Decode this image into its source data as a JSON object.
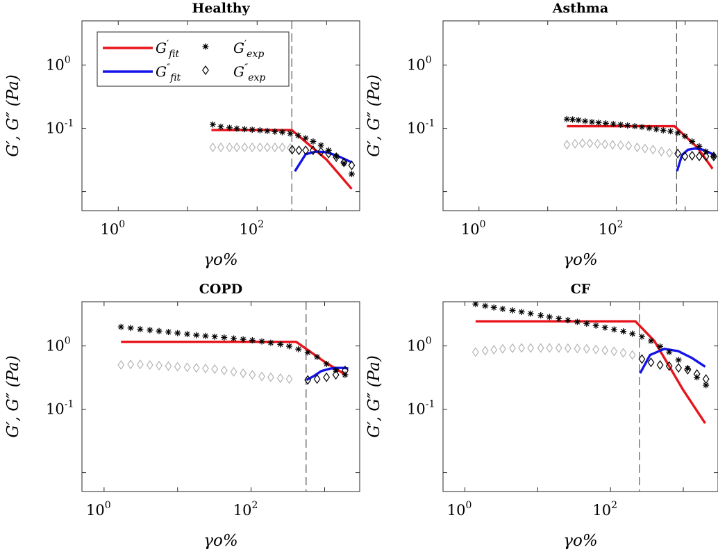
{
  "chart_data": [
    {
      "type": "line",
      "title": "Healthy",
      "xlabel": "γo%",
      "ylabel": "G′, G″ (Pa)",
      "xscale": "log",
      "yscale": "log",
      "xlim": [
        0.3,
        3000
      ],
      "ylim": [
        0.005,
        5
      ],
      "xticks": [
        {
          "base": "10",
          "exp": "0",
          "value": 1
        },
        {
          "base": "10",
          "exp": "2",
          "value": 100
        }
      ],
      "yticks": [
        {
          "base": "10",
          "exp": "0",
          "value": 1
        },
        {
          "base": "10",
          "exp": "-1",
          "value": 0.1
        }
      ],
      "vline": 316,
      "legend": {
        "placement": "top-left",
        "entries": [
          {
            "base": "G",
            "mark": "′",
            "sub": "fit"
          },
          {
            "base": "G",
            "mark": "″",
            "sub": "fit"
          },
          {
            "base": "G",
            "mark": "′",
            "sub": "exp"
          },
          {
            "base": "G",
            "mark": "″",
            "sub": "exp"
          }
        ]
      },
      "series": [
        {
          "kind": "line",
          "color": "#e8141b",
          "x": [
            22,
            315,
            1000,
            2300
          ],
          "y": [
            0.094,
            0.094,
            0.032,
            0.011
          ]
        },
        {
          "kind": "line",
          "color": "#1414e8",
          "x": [
            350,
            500,
            700,
            1000,
            1500,
            2300
          ],
          "y": [
            0.021,
            0.039,
            0.043,
            0.042,
            0.036,
            0.029
          ]
        },
        {
          "kind": "marker",
          "symbol": "asterisk",
          "x": [
            23,
            30,
            40,
            51,
            66,
            85,
            110,
            140,
            180,
            230,
            300,
            390,
            500,
            640,
            830,
            1070,
            1380,
            1780,
            2300
          ],
          "y": [
            0.115,
            0.106,
            0.102,
            0.099,
            0.097,
            0.095,
            0.093,
            0.091,
            0.089,
            0.087,
            0.083,
            0.077,
            0.07,
            0.062,
            0.054,
            0.045,
            0.036,
            0.028,
            0.019
          ]
        },
        {
          "kind": "marker",
          "symbol": "diamond",
          "color": "#b4b4b4",
          "x": [
            23,
            30,
            40,
            51,
            66,
            85,
            110,
            140,
            180,
            230,
            300
          ],
          "y": [
            0.05,
            0.05,
            0.05,
            0.05,
            0.05,
            0.05,
            0.05,
            0.05,
            0.05,
            0.05,
            0.049
          ]
        },
        {
          "kind": "marker",
          "symbol": "diamond",
          "color": "#000000",
          "x": [
            320,
            400,
            500,
            640,
            830,
            1070,
            1380,
            1780,
            2300
          ],
          "y": [
            0.046,
            0.045,
            0.045,
            0.045,
            0.043,
            0.04,
            0.035,
            0.029,
            0.026
          ]
        }
      ]
    },
    {
      "type": "line",
      "title": "Asthma",
      "xlabel": "γo%",
      "ylabel": "G′, G″ (Pa)",
      "xscale": "log",
      "yscale": "log",
      "xlim": [
        0.3,
        3000
      ],
      "ylim": [
        0.005,
        5
      ],
      "xticks": [
        {
          "base": "10",
          "exp": "0",
          "value": 1
        },
        {
          "base": "10",
          "exp": "2",
          "value": 100
        }
      ],
      "yticks": [
        {
          "base": "10",
          "exp": "0",
          "value": 1
        },
        {
          "base": "10",
          "exp": "-1",
          "value": 0.1
        }
      ],
      "vline": 750,
      "legend": null,
      "series": [
        {
          "kind": "line",
          "color": "#e8141b",
          "x": [
            19,
            700,
            1500,
            2500
          ],
          "y": [
            0.108,
            0.108,
            0.05,
            0.023
          ]
        },
        {
          "kind": "line",
          "color": "#1414e8",
          "x": [
            760,
            900,
            1100,
            1400,
            1800,
            2300,
            2700
          ],
          "y": [
            0.021,
            0.038,
            0.046,
            0.048,
            0.046,
            0.041,
            0.037
          ]
        },
        {
          "kind": "marker",
          "symbol": "asterisk",
          "x": [
            19,
            23,
            28,
            35,
            44,
            55,
            70,
            90,
            115,
            145,
            185,
            235,
            300,
            380,
            480,
            610,
            780,
            990,
            1260,
            1600,
            2000,
            2600
          ],
          "y": [
            0.14,
            0.138,
            0.135,
            0.13,
            0.126,
            0.123,
            0.12,
            0.117,
            0.114,
            0.111,
            0.108,
            0.105,
            0.101,
            0.097,
            0.093,
            0.09,
            0.085,
            0.075,
            0.062,
            0.052,
            0.043,
            0.036
          ]
        },
        {
          "kind": "marker",
          "symbol": "diamond",
          "color": "#b4b4b4",
          "x": [
            19,
            25,
            32,
            41,
            53,
            68,
            88,
            115,
            150,
            200,
            260,
            340,
            450,
            590
          ],
          "y": [
            0.055,
            0.057,
            0.058,
            0.058,
            0.057,
            0.056,
            0.055,
            0.054,
            0.053,
            0.05,
            0.048,
            0.046,
            0.043,
            0.041
          ]
        },
        {
          "kind": "marker",
          "symbol": "diamond",
          "color": "#000000",
          "x": [
            780,
            990,
            1260,
            1600,
            2000,
            2600
          ],
          "y": [
            0.04,
            0.036,
            0.037,
            0.036,
            0.036,
            0.036
          ]
        }
      ]
    },
    {
      "type": "line",
      "title": "COPD",
      "xlabel": "γo%",
      "ylabel": "G′, G″ (Pa)",
      "xscale": "log",
      "yscale": "log",
      "xlim": [
        0.5,
        3000
      ],
      "ylim": [
        0.005,
        5
      ],
      "xticks": [
        {
          "base": "10",
          "exp": "0",
          "value": 1
        },
        {
          "base": "10",
          "exp": "2",
          "value": 100
        }
      ],
      "yticks": [
        {
          "base": "10",
          "exp": "0",
          "value": 1
        },
        {
          "base": "10",
          "exp": "-1",
          "value": 0.1
        }
      ],
      "vline": 560,
      "legend": null,
      "series": [
        {
          "kind": "line",
          "color": "#e8141b",
          "x": [
            1.7,
            410,
            1000,
            2000
          ],
          "y": [
            1.16,
            1.16,
            0.56,
            0.34
          ]
        },
        {
          "kind": "line",
          "color": "#1414e8",
          "x": [
            570,
            700,
            900,
            1200,
            1500,
            1800,
            2100
          ],
          "y": [
            0.29,
            0.33,
            0.4,
            0.44,
            0.45,
            0.45,
            0.44
          ]
        },
        {
          "kind": "marker",
          "symbol": "asterisk",
          "x": [
            1.7,
            2.3,
            3.1,
            4.2,
            5.6,
            7.5,
            10,
            13.5,
            18,
            24,
            32,
            43,
            58,
            78,
            104,
            140,
            185,
            250,
            330,
            440,
            590,
            790,
            1060,
            1420,
            1900
          ],
          "y": [
            2.0,
            1.92,
            1.84,
            1.78,
            1.72,
            1.66,
            1.6,
            1.54,
            1.48,
            1.44,
            1.4,
            1.36,
            1.31,
            1.27,
            1.23,
            1.18,
            1.12,
            1.06,
            0.99,
            0.89,
            0.79,
            0.67,
            0.52,
            0.42,
            0.35
          ]
        },
        {
          "kind": "marker",
          "symbol": "diamond",
          "color": "#b4b4b4",
          "x": [
            1.7,
            2.3,
            3.1,
            4.2,
            5.6,
            7.5,
            10,
            13.5,
            18,
            24,
            32,
            43,
            58,
            78,
            104,
            140,
            185,
            250,
            330
          ],
          "y": [
            0.5,
            0.51,
            0.51,
            0.5,
            0.49,
            0.48,
            0.47,
            0.46,
            0.45,
            0.44,
            0.43,
            0.41,
            0.39,
            0.37,
            0.35,
            0.33,
            0.32,
            0.31,
            0.3
          ]
        },
        {
          "kind": "marker",
          "symbol": "diamond",
          "color": "#000000",
          "x": [
            590,
            790,
            1060,
            1420,
            1900
          ],
          "y": [
            0.29,
            0.3,
            0.32,
            0.35,
            0.41
          ]
        }
      ]
    },
    {
      "type": "line",
      "title": "CF",
      "xlabel": "γo%",
      "ylabel": "G′, G″ (Pa)",
      "xscale": "log",
      "yscale": "log",
      "xlim": [
        0.5,
        3000
      ],
      "ylim": [
        0.005,
        5
      ],
      "xticks": [
        {
          "base": "10",
          "exp": "0",
          "value": 1
        },
        {
          "base": "10",
          "exp": "2",
          "value": 100
        }
      ],
      "yticks": [
        {
          "base": "10",
          "exp": "0",
          "value": 1
        },
        {
          "base": "10",
          "exp": "-1",
          "value": 0.1
        }
      ],
      "vline": 250,
      "legend": null,
      "series": [
        {
          "kind": "line",
          "color": "#e8141b",
          "x": [
            1.4,
            220,
            400,
            1000,
            2000
          ],
          "y": [
            2.45,
            2.45,
            1.2,
            0.2,
            0.06
          ]
        },
        {
          "kind": "line",
          "color": "#1414e8",
          "x": [
            255,
            350,
            550,
            850,
            1300,
            2000
          ],
          "y": [
            0.37,
            0.72,
            0.9,
            0.83,
            0.65,
            0.47
          ]
        },
        {
          "kind": "marker",
          "symbol": "asterisk",
          "x": [
            1.4,
            1.9,
            2.5,
            3.3,
            4.5,
            6,
            8,
            11,
            14.5,
            19.5,
            26,
            35,
            47,
            63,
            84,
            112,
            150,
            200,
            270,
            360,
            480,
            640,
            860,
            1150,
            1540,
            2050
          ],
          "y": [
            4.6,
            4.3,
            4.05,
            3.85,
            3.65,
            3.45,
            3.25,
            3.05,
            2.87,
            2.7,
            2.55,
            2.4,
            2.25,
            2.1,
            1.95,
            1.82,
            1.7,
            1.56,
            1.4,
            1.2,
            0.98,
            0.8,
            0.6,
            0.44,
            0.32,
            0.24
          ]
        },
        {
          "kind": "marker",
          "symbol": "diamond",
          "color": "#b4b4b4",
          "x": [
            1.4,
            1.9,
            2.5,
            3.3,
            4.5,
            6,
            8,
            11,
            14.5,
            19.5,
            26,
            35,
            47,
            63,
            84,
            112,
            150,
            200
          ],
          "y": [
            0.8,
            0.84,
            0.87,
            0.9,
            0.92,
            0.93,
            0.93,
            0.93,
            0.93,
            0.93,
            0.92,
            0.91,
            0.9,
            0.88,
            0.85,
            0.82,
            0.78,
            0.72
          ]
        },
        {
          "kind": "marker",
          "symbol": "diamond",
          "color": "#000000",
          "x": [
            270,
            360,
            480,
            640,
            860,
            1150,
            1540,
            2050
          ],
          "y": [
            0.62,
            0.55,
            0.5,
            0.48,
            0.45,
            0.42,
            0.36,
            0.3
          ]
        }
      ]
    }
  ]
}
